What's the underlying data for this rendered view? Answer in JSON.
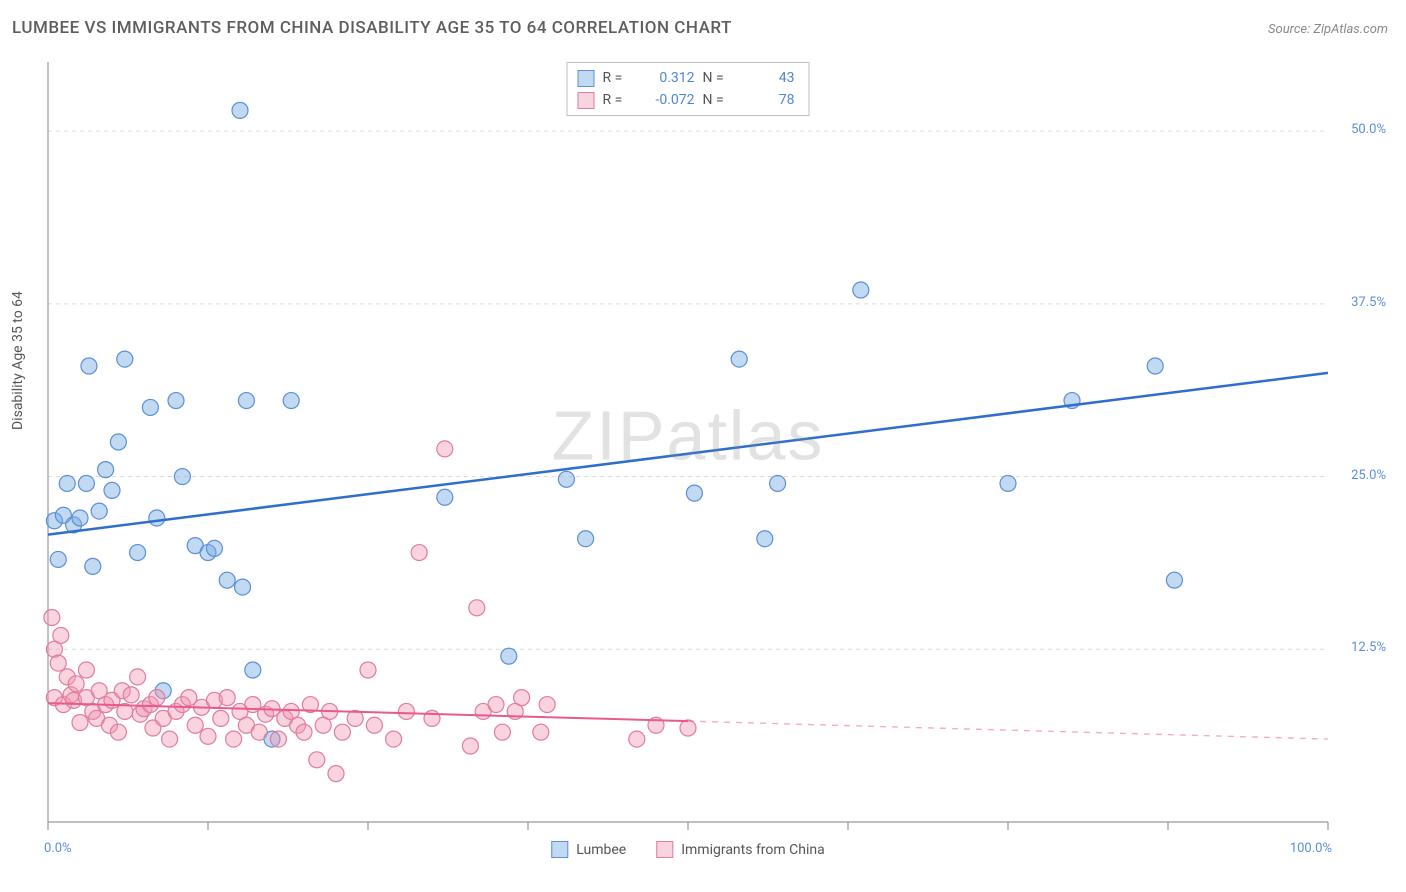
{
  "title": "LUMBEE VS IMMIGRANTS FROM CHINA DISABILITY AGE 35 TO 64 CORRELATION CHART",
  "source": "Source: ZipAtlas.com",
  "y_axis_label": "Disability Age 35 to 64",
  "watermark": "ZIPatlas",
  "chart": {
    "type": "scatter",
    "xlim": [
      0,
      100
    ],
    "ylim": [
      0,
      55
    ],
    "x_range_labels": [
      "0.0%",
      "100.0%"
    ],
    "y_ticks": [
      12.5,
      25.0,
      37.5,
      50.0
    ],
    "y_tick_labels": [
      "12.5%",
      "25.0%",
      "37.5%",
      "50.0%"
    ],
    "x_tick_positions": [
      0,
      12.5,
      25,
      37.5,
      50,
      62.5,
      75,
      87.5,
      100
    ],
    "background_color": "#ffffff",
    "grid_color": "#dcdcdc",
    "axis_color": "#999999",
    "tick_label_color": "#5b8fd6",
    "series": [
      {
        "name": "Lumbee",
        "marker_fill": "rgba(120,170,226,0.45)",
        "marker_stroke": "#5b8fd6",
        "marker_radius": 8,
        "trend_color": "#2f6ecc",
        "trend_width": 2.5,
        "trend_y_at_x0": 20.8,
        "trend_y_at_x100": 32.5,
        "trend_solid_x_end": 100,
        "R": "0.312",
        "N": "43",
        "points": [
          [
            0.5,
            21.8
          ],
          [
            0.8,
            19.0
          ],
          [
            1.2,
            22.2
          ],
          [
            1.5,
            24.5
          ],
          [
            2.0,
            21.5
          ],
          [
            2.5,
            22.0
          ],
          [
            3.0,
            24.5
          ],
          [
            3.2,
            33.0
          ],
          [
            3.5,
            18.5
          ],
          [
            4.0,
            22.5
          ],
          [
            4.5,
            25.5
          ],
          [
            5.0,
            24.0
          ],
          [
            5.5,
            27.5
          ],
          [
            6.0,
            33.5
          ],
          [
            7.0,
            19.5
          ],
          [
            8.0,
            30.0
          ],
          [
            8.5,
            22.0
          ],
          [
            9.0,
            9.5
          ],
          [
            10.0,
            30.5
          ],
          [
            10.5,
            25.0
          ],
          [
            11.5,
            20.0
          ],
          [
            12.5,
            19.5
          ],
          [
            13.0,
            19.8
          ],
          [
            14.0,
            17.5
          ],
          [
            15.0,
            51.5
          ],
          [
            15.2,
            17.0
          ],
          [
            15.5,
            30.5
          ],
          [
            16.0,
            11.0
          ],
          [
            17.5,
            6.0
          ],
          [
            19.0,
            30.5
          ],
          [
            31.0,
            23.5
          ],
          [
            36.0,
            12.0
          ],
          [
            40.5,
            24.8
          ],
          [
            42.0,
            20.5
          ],
          [
            50.5,
            23.8
          ],
          [
            54.0,
            33.5
          ],
          [
            56.0,
            20.5
          ],
          [
            57.0,
            24.5
          ],
          [
            63.5,
            38.5
          ],
          [
            75.0,
            24.5
          ],
          [
            80.0,
            30.5
          ],
          [
            86.5,
            33.0
          ],
          [
            88.0,
            17.5
          ]
        ]
      },
      {
        "name": "Immigrants from China",
        "marker_fill": "rgba(240,150,175,0.42)",
        "marker_stroke": "#e07ca0",
        "marker_radius": 8,
        "trend_color": "#e85a8f",
        "trend_width": 2,
        "trend_y_at_x0": 8.6,
        "trend_y_at_x100": 6.0,
        "trend_solid_x_end": 50,
        "R": "-0.072",
        "N": "78",
        "points": [
          [
            0.3,
            14.8
          ],
          [
            0.5,
            12.5
          ],
          [
            0.5,
            9.0
          ],
          [
            0.8,
            11.5
          ],
          [
            1.0,
            13.5
          ],
          [
            1.2,
            8.5
          ],
          [
            1.5,
            10.5
          ],
          [
            1.8,
            9.2
          ],
          [
            2.0,
            8.8
          ],
          [
            2.2,
            10.0
          ],
          [
            2.5,
            7.2
          ],
          [
            3.0,
            9.0
          ],
          [
            3.0,
            11.0
          ],
          [
            3.5,
            8.0
          ],
          [
            3.8,
            7.5
          ],
          [
            4.0,
            9.5
          ],
          [
            4.5,
            8.5
          ],
          [
            4.8,
            7.0
          ],
          [
            5.0,
            8.8
          ],
          [
            5.5,
            6.5
          ],
          [
            5.8,
            9.5
          ],
          [
            6.0,
            8.0
          ],
          [
            6.5,
            9.2
          ],
          [
            7.0,
            10.5
          ],
          [
            7.2,
            7.8
          ],
          [
            7.5,
            8.2
          ],
          [
            8.0,
            8.5
          ],
          [
            8.2,
            6.8
          ],
          [
            8.5,
            9.0
          ],
          [
            9.0,
            7.5
          ],
          [
            9.5,
            6.0
          ],
          [
            10.0,
            8.0
          ],
          [
            10.5,
            8.5
          ],
          [
            11.0,
            9.0
          ],
          [
            11.5,
            7.0
          ],
          [
            12.0,
            8.3
          ],
          [
            12.5,
            6.2
          ],
          [
            13.0,
            8.8
          ],
          [
            13.5,
            7.5
          ],
          [
            14.0,
            9.0
          ],
          [
            14.5,
            6.0
          ],
          [
            15.0,
            8.0
          ],
          [
            15.5,
            7.0
          ],
          [
            16.0,
            8.5
          ],
          [
            16.5,
            6.5
          ],
          [
            17.0,
            7.8
          ],
          [
            17.5,
            8.2
          ],
          [
            18.0,
            6.0
          ],
          [
            18.5,
            7.5
          ],
          [
            19.0,
            8.0
          ],
          [
            19.5,
            7.0
          ],
          [
            20.0,
            6.5
          ],
          [
            20.5,
            8.5
          ],
          [
            21.0,
            4.5
          ],
          [
            21.5,
            7.0
          ],
          [
            22.0,
            8.0
          ],
          [
            22.5,
            3.5
          ],
          [
            23.0,
            6.5
          ],
          [
            24.0,
            7.5
          ],
          [
            25.0,
            11.0
          ],
          [
            25.5,
            7.0
          ],
          [
            27.0,
            6.0
          ],
          [
            28.0,
            8.0
          ],
          [
            29.0,
            19.5
          ],
          [
            30.0,
            7.5
          ],
          [
            31.0,
            27.0
          ],
          [
            33.0,
            5.5
          ],
          [
            33.5,
            15.5
          ],
          [
            34.0,
            8.0
          ],
          [
            35.0,
            8.5
          ],
          [
            35.5,
            6.5
          ],
          [
            36.5,
            8.0
          ],
          [
            37.0,
            9.0
          ],
          [
            38.5,
            6.5
          ],
          [
            39.0,
            8.5
          ],
          [
            46.0,
            6.0
          ],
          [
            47.5,
            7.0
          ],
          [
            50.0,
            6.8
          ]
        ]
      }
    ],
    "legend_top": {
      "rows": [
        {
          "swatch_series": 0,
          "labelR": "R =",
          "valR": "0.312",
          "labelN": "N =",
          "valN": "43"
        },
        {
          "swatch_series": 1,
          "labelR": "R =",
          "valR": "-0.072",
          "labelN": "N =",
          "valN": "78"
        }
      ]
    },
    "legend_bottom": [
      {
        "swatch_series": 0,
        "label": "Lumbee"
      },
      {
        "swatch_series": 1,
        "label": "Immigrants from China"
      }
    ]
  }
}
